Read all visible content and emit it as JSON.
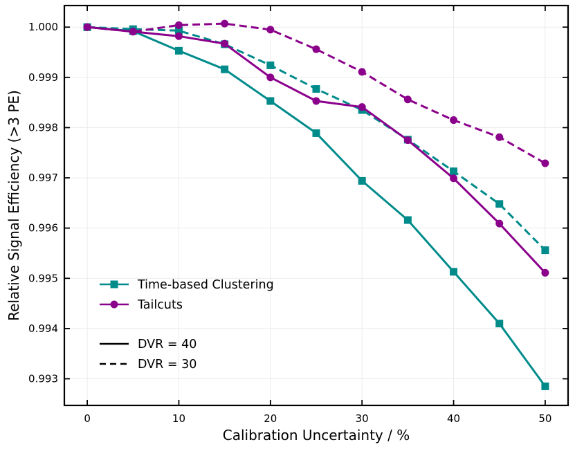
{
  "chart_data": {
    "type": "line",
    "title": "",
    "xlabel": "Calibration Uncertainty / %",
    "ylabel": "Relative Signal Efficiency (>3 PE)",
    "xlim": [
      -2.5,
      52.5
    ],
    "ylim": [
      0.99247,
      1.00043
    ],
    "xticks": [
      0,
      10,
      20,
      30,
      40,
      50
    ],
    "xtick_labels": [
      "0",
      "10",
      "20",
      "30",
      "40",
      "50"
    ],
    "yticks": [
      0.993,
      0.994,
      0.995,
      0.996,
      0.997,
      0.998,
      0.999,
      1.0
    ],
    "ytick_labels": [
      "0.993",
      "0.994",
      "0.995",
      "0.996",
      "0.997",
      "0.998",
      "0.999",
      "1.000"
    ],
    "grid": true,
    "x": [
      0,
      5,
      10,
      15,
      20,
      25,
      30,
      35,
      40,
      45,
      50
    ],
    "series": [
      {
        "name": "Time-based Clustering, DVR = 40",
        "method": "clustering",
        "dvr": "40",
        "color": "#008b8b",
        "marker": "square",
        "dash": "solid",
        "values": [
          1.0,
          0.99992,
          0.99953,
          0.99916,
          0.99853,
          0.99789,
          0.99694,
          0.99616,
          0.99513,
          0.9941,
          0.99285
        ]
      },
      {
        "name": "Time-based Clustering, DVR = 30",
        "method": "clustering",
        "dvr": "30",
        "color": "#008b8b",
        "marker": "square",
        "dash": "dashed",
        "values": [
          1.0,
          0.99996,
          0.99993,
          0.99966,
          0.99924,
          0.99877,
          0.99835,
          0.99776,
          0.99713,
          0.99648,
          0.99556
        ]
      },
      {
        "name": "Tailcuts, DVR = 40",
        "method": "tailcuts",
        "dvr": "40",
        "color": "#8b008b",
        "marker": "circle",
        "dash": "solid",
        "values": [
          1.0,
          0.99991,
          0.99982,
          0.99967,
          0.999,
          0.99853,
          0.99841,
          0.99775,
          0.99699,
          0.99609,
          0.99511
        ]
      },
      {
        "name": "Tailcuts, DVR = 30",
        "method": "tailcuts",
        "dvr": "30",
        "color": "#8b008b",
        "marker": "circle",
        "dash": "dashed",
        "values": [
          1.0,
          0.99991,
          1.00004,
          1.00007,
          0.99995,
          0.99956,
          0.99911,
          0.99856,
          0.99815,
          0.99781,
          0.99729
        ]
      }
    ],
    "legend": {
      "placement": "lower-left",
      "entries": [
        {
          "label": "Time-based Clustering",
          "color": "#008b8b",
          "marker": "square",
          "dash": "solid"
        },
        {
          "label": "Tailcuts",
          "color": "#8b008b",
          "marker": "circle",
          "dash": "solid"
        },
        {
          "label": "DVR = 40",
          "color": "#000000",
          "marker": "none",
          "dash": "solid"
        },
        {
          "label": "DVR = 30",
          "color": "#000000",
          "marker": "none",
          "dash": "dashed"
        }
      ]
    }
  }
}
